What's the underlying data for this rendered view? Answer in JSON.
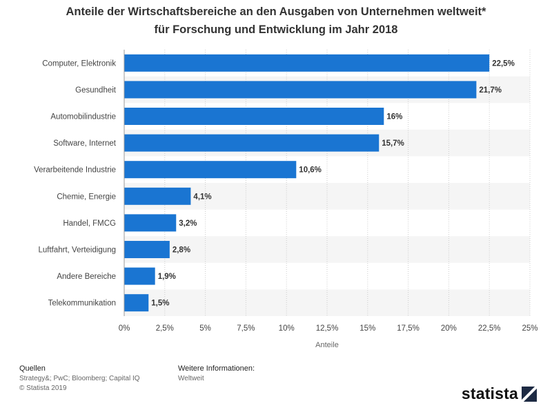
{
  "chart_data": {
    "type": "bar",
    "orientation": "horizontal",
    "title_line1": "Anteile der Wirtschaftsbereiche an den Ausgaben von Unternehmen weltweit*",
    "title_line2": "für Forschung und Entwicklung im Jahr 2018",
    "categories": [
      "Computer, Elektronik",
      "Gesundheit",
      "Automobilindustrie",
      "Software, Internet",
      "Verarbeitende Industrie",
      "Chemie, Energie",
      "Handel, FMCG",
      "Luftfahrt, Verteidigung",
      "Andere Bereiche",
      "Telekommunikation"
    ],
    "values": [
      22.5,
      21.7,
      16,
      15.7,
      10.6,
      4.1,
      3.2,
      2.8,
      1.9,
      1.5
    ],
    "value_labels": [
      "22,5%",
      "21,7%",
      "16%",
      "15,7%",
      "10,6%",
      "4,1%",
      "3,2%",
      "2,8%",
      "1,9%",
      "1,5%"
    ],
    "xlim": [
      0,
      25
    ],
    "xticks": [
      0,
      2.5,
      5,
      7.5,
      10,
      12.5,
      15,
      17.5,
      20,
      22.5,
      25
    ],
    "xtick_labels": [
      "0%",
      "2,5%",
      "5%",
      "7,5%",
      "10%",
      "12,5%",
      "15%",
      "17,5%",
      "20%",
      "22,5%",
      "25%"
    ],
    "xlabel": "Anteile",
    "bar_color": "#1a75d2",
    "grid": true
  },
  "footer": {
    "sources_heading": "Quellen",
    "sources_text": "Strategy&; PwC; Bloomberg; Capital IQ",
    "copyright": "© Statista 2019",
    "info_heading": "Weitere Informationen:",
    "info_text": "Weltweit",
    "logo_text": "statista"
  }
}
